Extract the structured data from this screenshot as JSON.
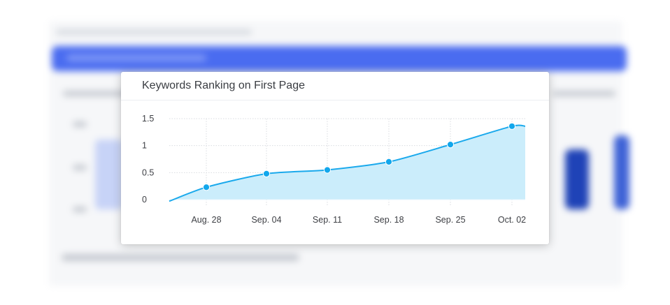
{
  "card": {
    "title": "Keywords Ranking on First Page"
  },
  "chart_data": {
    "type": "area",
    "title": "Keywords Ranking on First Page",
    "xlabel": "",
    "ylabel": "",
    "categories": [
      "Aug. 28",
      "Sep. 04",
      "Sep. 11",
      "Sep. 18",
      "Sep. 25",
      "Oct. 02"
    ],
    "series": [
      {
        "values": [
          0.23,
          0.48,
          0.55,
          0.7,
          1.02,
          1.36
        ]
      }
    ],
    "y_ticks": [
      0,
      0.5,
      1,
      1.5
    ],
    "y_tick_labels": [
      "0",
      "0.5",
      "1",
      "1.5"
    ],
    "ylim": [
      0,
      1.5
    ],
    "start_value": -0.03,
    "end_value": 1.36,
    "grid": true,
    "legend": "none",
    "colors": {
      "line": "#1aa9ec",
      "fill": "#cbedfb",
      "point": "#12a7ec",
      "grid": "#d9dce0",
      "baseline": "#e9f7fd"
    }
  }
}
